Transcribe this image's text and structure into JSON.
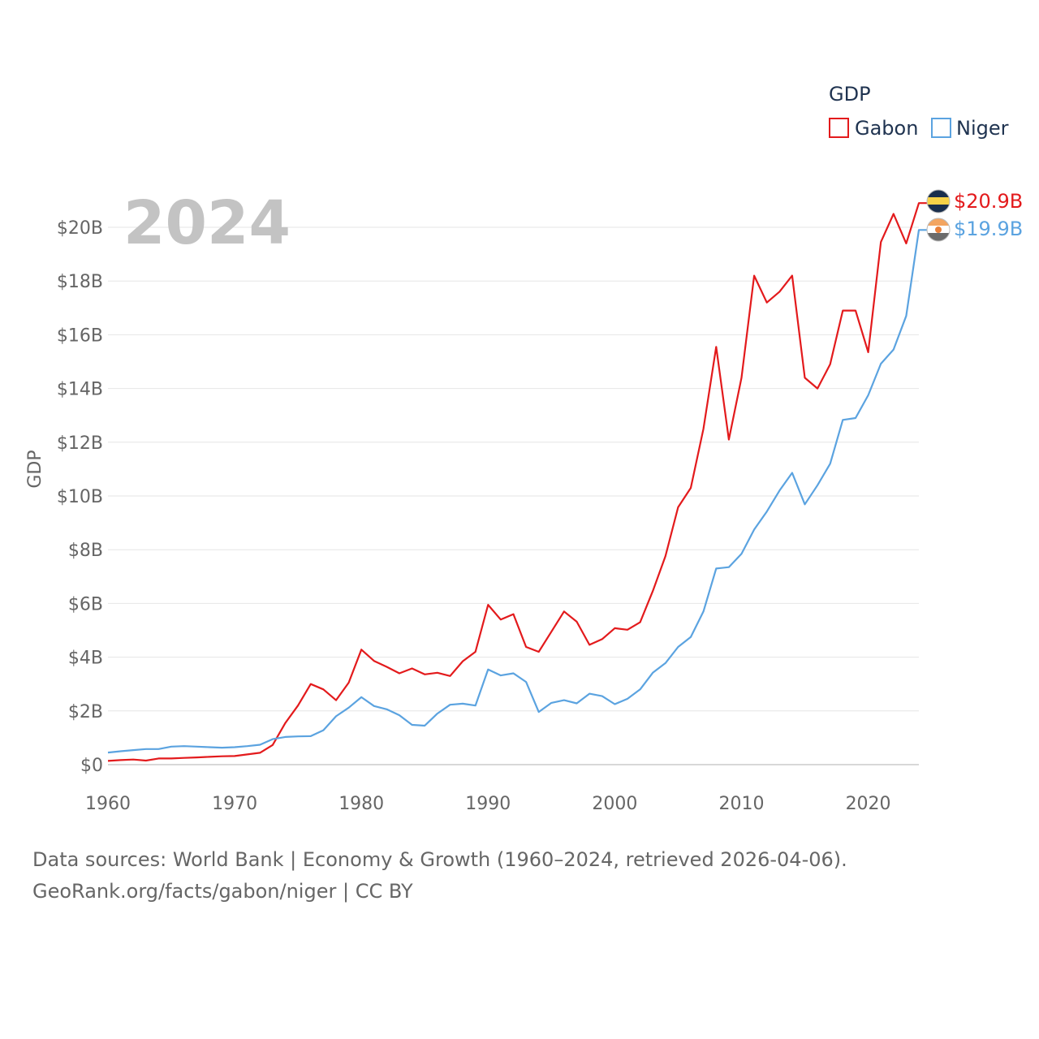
{
  "chart_data": {
    "type": "line",
    "title": "GDP",
    "year_label": "2024",
    "xlabel": "",
    "ylabel": "GDP",
    "xlim": [
      1960,
      2024
    ],
    "ylim": [
      0,
      21
    ],
    "x_ticks": [
      1960,
      1970,
      1980,
      1990,
      2000,
      2010,
      2020
    ],
    "x_tick_labels": [
      "1960",
      "1970",
      "1980",
      "1990",
      "2000",
      "2010",
      "2020"
    ],
    "y_ticks": [
      0,
      2,
      4,
      6,
      8,
      10,
      12,
      14,
      16,
      18,
      20
    ],
    "y_tick_labels": [
      "$0",
      "$2B",
      "$4B",
      "$6B",
      "$8B",
      "$10B",
      "$12B",
      "$14B",
      "$16B",
      "$18B",
      "$20B"
    ],
    "grid": true,
    "legend_position": "top-right",
    "x": [
      1960,
      1961,
      1962,
      1963,
      1964,
      1965,
      1966,
      1967,
      1968,
      1969,
      1970,
      1971,
      1972,
      1973,
      1974,
      1975,
      1976,
      1977,
      1978,
      1979,
      1980,
      1981,
      1982,
      1983,
      1984,
      1985,
      1986,
      1987,
      1988,
      1989,
      1990,
      1991,
      1992,
      1993,
      1994,
      1995,
      1996,
      1997,
      1998,
      1999,
      2000,
      2001,
      2002,
      2003,
      2004,
      2005,
      2006,
      2007,
      2008,
      2009,
      2010,
      2011,
      2012,
      2013,
      2014,
      2015,
      2016,
      2017,
      2018,
      2019,
      2020,
      2021,
      2022,
      2023,
      2024
    ],
    "series": [
      {
        "name": "Gabon",
        "color": "#e31a1c",
        "end_label": "$20.9B",
        "flag": "gabon-flag-icon",
        "values": [
          0.14,
          0.17,
          0.19,
          0.15,
          0.23,
          0.23,
          0.25,
          0.27,
          0.29,
          0.31,
          0.32,
          0.38,
          0.44,
          0.73,
          1.55,
          2.2,
          3.0,
          2.8,
          2.4,
          3.05,
          4.28,
          3.86,
          3.64,
          3.4,
          3.58,
          3.36,
          3.42,
          3.3,
          3.85,
          4.2,
          5.95,
          5.4,
          5.6,
          4.38,
          4.2,
          4.95,
          5.7,
          5.32,
          4.46,
          4.67,
          5.08,
          5.02,
          5.3,
          6.46,
          7.76,
          9.58,
          10.3,
          12.5,
          15.55,
          12.1,
          14.4,
          18.2,
          17.2,
          17.6,
          18.2,
          14.4,
          14.0,
          14.9,
          16.9,
          16.9,
          15.35,
          19.45,
          20.5,
          19.4,
          20.9
        ]
      },
      {
        "name": "Niger",
        "color": "#5ba3e0",
        "end_label": "$19.9B",
        "flag": "niger-flag-icon",
        "values": [
          0.45,
          0.5,
          0.54,
          0.58,
          0.58,
          0.67,
          0.69,
          0.67,
          0.65,
          0.63,
          0.65,
          0.69,
          0.74,
          0.95,
          1.03,
          1.05,
          1.06,
          1.28,
          1.8,
          2.12,
          2.51,
          2.18,
          2.06,
          1.84,
          1.48,
          1.45,
          1.9,
          2.23,
          2.27,
          2.2,
          3.54,
          3.32,
          3.4,
          3.08,
          1.96,
          2.3,
          2.4,
          2.28,
          2.64,
          2.55,
          2.25,
          2.45,
          2.8,
          3.42,
          3.78,
          4.38,
          4.75,
          5.7,
          7.3,
          7.35,
          7.85,
          8.75,
          9.42,
          10.2,
          10.86,
          9.69,
          10.4,
          11.2,
          12.83,
          12.9,
          13.75,
          14.92,
          15.45,
          16.7,
          19.9
        ]
      }
    ]
  },
  "source": {
    "line1": "Data sources: World Bank | Economy & Growth (1960–2024, retrieved 2026-04-06).",
    "line2": "GeoRank.org/facts/gabon/niger | CC BY"
  }
}
